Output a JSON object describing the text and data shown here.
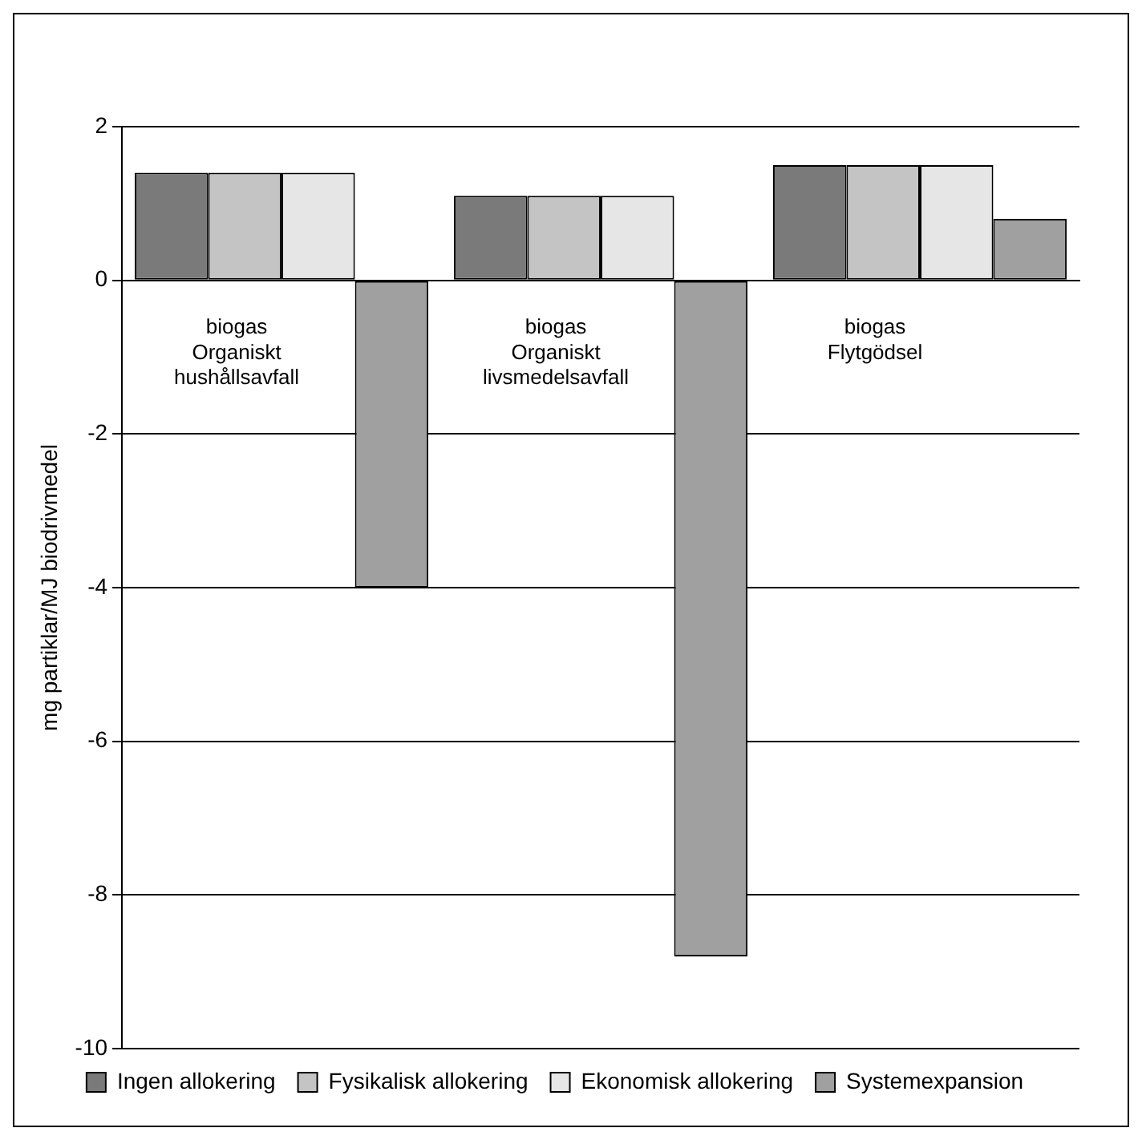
{
  "chart_data": {
    "type": "bar",
    "ylabel": "mg partiklar/MJ biodrivmedel",
    "categories": [
      "biogas Organiskt hushållsavfall",
      "biogas Organiskt livsmedelsavfall",
      "biogas Flytgödsel"
    ],
    "series": [
      {
        "name": "Ingen allokering",
        "color": "#7a7a7a",
        "values": [
          1.4,
          1.1,
          1.5
        ]
      },
      {
        "name": "Fysikalisk allokering",
        "color": "#c4c4c4",
        "values": [
          1.4,
          1.1,
          1.5
        ]
      },
      {
        "name": "Ekonomisk allokering",
        "color": "#e6e6e6",
        "values": [
          1.4,
          1.1,
          1.5
        ]
      },
      {
        "name": "Systemexpansion",
        "color": "#a0a0a0",
        "values": [
          -4.0,
          -8.8,
          0.8
        ]
      }
    ],
    "ylim": [
      -10,
      2
    ],
    "yticks": [
      -10,
      -8,
      -6,
      -4,
      -2,
      0,
      2
    ],
    "grid": "y",
    "legend": "bottom"
  }
}
